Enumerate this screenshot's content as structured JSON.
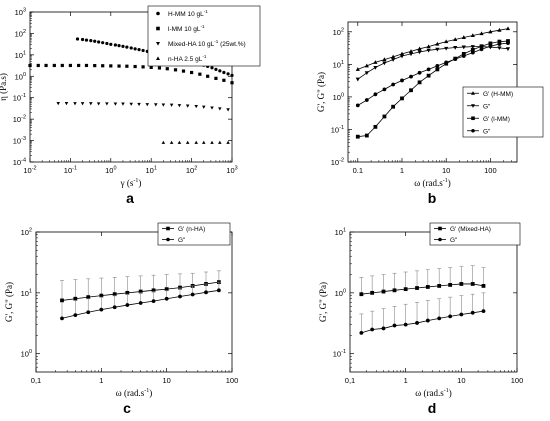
{
  "chart_data": [
    {
      "type": "scatter",
      "panel_label": "a",
      "xlabel": "γ (s",
      "xlabel_exp": "-1",
      "xlabel_close": ")",
      "ylabel": "η (Pa.s)",
      "x_scale": "log",
      "y_scale": "log",
      "xlim": [
        0.01,
        1000
      ],
      "ylim": [
        0.0001,
        1000
      ],
      "x_ticks": [
        {
          "b": "10",
          "e": "-2"
        },
        {
          "b": "10",
          "e": "-1"
        },
        {
          "b": "10",
          "e": "0"
        },
        {
          "b": "10",
          "e": "1"
        },
        {
          "b": "10",
          "e": "2"
        },
        {
          "b": "10",
          "e": "3"
        }
      ],
      "y_ticks": [
        {
          "b": "10",
          "e": "-4"
        },
        {
          "b": "10",
          "e": "-3"
        },
        {
          "b": "10",
          "e": "-2"
        },
        {
          "b": "10",
          "e": "-1"
        },
        {
          "b": "10",
          "e": "0"
        },
        {
          "b": "10",
          "e": "1"
        },
        {
          "b": "10",
          "e": "2"
        },
        {
          "b": "10",
          "e": "3"
        }
      ],
      "legend_position": "top-right, outside",
      "series": [
        {
          "name": "H-MM 10 gL",
          "unit_exp": "-1",
          "marker": "circle",
          "x": [
            0.15,
            0.2,
            0.25,
            0.32,
            0.4,
            0.5,
            0.63,
            0.8,
            1,
            1.3,
            1.6,
            2,
            2.5,
            3.2,
            4,
            5,
            6.3,
            8,
            10,
            13,
            16,
            20,
            25,
            32,
            40,
            50,
            63,
            80,
            100,
            130,
            160,
            200,
            250,
            320,
            400,
            500,
            630,
            800,
            1000
          ],
          "y": [
            55,
            52,
            49,
            46,
            43,
            40,
            37,
            34,
            31,
            29,
            27,
            25,
            23,
            21,
            19,
            17.5,
            16,
            14.5,
            13,
            12,
            11,
            10,
            9,
            8.2,
            7.5,
            6.8,
            6,
            5.4,
            4.8,
            4.3,
            3.8,
            3.3,
            2.9,
            2.5,
            2.1,
            1.8,
            1.5,
            1.3,
            1.1
          ]
        },
        {
          "name": "l-MM 10 gL",
          "unit_exp": "-1",
          "marker": "square",
          "x": [
            0.01,
            0.016,
            0.025,
            0.04,
            0.063,
            0.1,
            0.16,
            0.25,
            0.4,
            0.63,
            1,
            1.6,
            2.5,
            4,
            6.3,
            10,
            16,
            25,
            40,
            63,
            100,
            160,
            250,
            400,
            630,
            1000
          ],
          "y": [
            3.2,
            3.2,
            3.2,
            3.2,
            3.2,
            3.2,
            3.2,
            3.2,
            3.15,
            3.1,
            3.05,
            3,
            2.95,
            2.85,
            2.75,
            2.6,
            2.45,
            2.25,
            2,
            1.75,
            1.5,
            1.25,
            1,
            0.8,
            0.65,
            0.5
          ]
        },
        {
          "name": "Mixed-HA 10 gL",
          "unit_exp": "-1",
          "name_suffix": " (25wt.%)",
          "marker": "triangle-down",
          "x": [
            0.05,
            0.08,
            0.13,
            0.2,
            0.32,
            0.5,
            0.8,
            1.3,
            2,
            3.2,
            5,
            8,
            13,
            20,
            32,
            50,
            80,
            130,
            200,
            320,
            500,
            800
          ],
          "y": [
            0.055,
            0.055,
            0.054,
            0.054,
            0.054,
            0.053,
            0.053,
            0.052,
            0.052,
            0.051,
            0.05,
            0.049,
            0.048,
            0.047,
            0.046,
            0.044,
            0.042,
            0.04,
            0.037,
            0.034,
            0.031,
            0.028
          ]
        },
        {
          "name": "n-HA 2.5 gL",
          "unit_exp": "-1",
          "marker": "triangle-up",
          "x": [
            20,
            32,
            50,
            80,
            130,
            200,
            320,
            500,
            800
          ],
          "y": [
            0.0008,
            0.0008,
            0.0008,
            0.0008,
            0.0008,
            0.0008,
            0.0008,
            0.0008,
            0.0008
          ]
        }
      ]
    },
    {
      "type": "line",
      "panel_label": "b",
      "xlabel": "ω (rad.s",
      "xlabel_exp": "-1",
      "xlabel_close": ")",
      "ylabel": "G', G\" (Pa)",
      "x_scale": "log",
      "y_scale": "log",
      "xlim": [
        0.06,
        400
      ],
      "ylim": [
        0.01,
        200
      ],
      "x_ticks": [
        {
          "b": "0.1"
        },
        {
          "b": "1"
        },
        {
          "b": "10"
        },
        {
          "b": "100"
        }
      ],
      "y_ticks": [
        {
          "b": "10",
          "e": "-2"
        },
        {
          "b": "10",
          "e": "-1"
        },
        {
          "b": "10",
          "e": "0"
        },
        {
          "b": "10",
          "e": "1"
        },
        {
          "b": "10",
          "e": "2"
        }
      ],
      "legend_position": "right",
      "series": [
        {
          "name": "G' (H-MM)",
          "marker": "triangle-up",
          "x": [
            0.1,
            0.16,
            0.25,
            0.4,
            0.63,
            1,
            1.6,
            2.5,
            4,
            6.3,
            10,
            16,
            25,
            40,
            63,
            100,
            160,
            250
          ],
          "y": [
            7,
            9,
            11.5,
            14,
            17,
            21,
            25,
            30,
            35,
            42,
            50,
            58,
            67,
            77,
            88,
            100,
            112,
            125
          ]
        },
        {
          "name": "G\"",
          "marker": "triangle-down",
          "x": [
            0.1,
            0.16,
            0.25,
            0.4,
            0.63,
            1,
            1.6,
            2.5,
            4,
            6.3,
            10,
            16,
            25,
            40,
            63,
            100,
            160,
            250
          ],
          "y": [
            3.5,
            5.5,
            8,
            11,
            14,
            18,
            21,
            24,
            27,
            29,
            31,
            33,
            34,
            35,
            35,
            34,
            32,
            30
          ]
        },
        {
          "name": "G' (l-MM)",
          "marker": "square",
          "x": [
            0.1,
            0.16,
            0.25,
            0.4,
            0.63,
            1,
            1.6,
            2.5,
            4,
            6.3,
            10,
            16,
            25,
            40,
            63,
            100,
            160,
            250
          ],
          "y": [
            0.06,
            0.065,
            0.12,
            0.25,
            0.5,
            0.9,
            1.6,
            2.8,
            4.5,
            7,
            10.5,
            15,
            21,
            28,
            36,
            44,
            50,
            52
          ]
        },
        {
          "name": "G\"",
          "marker": "circle",
          "x": [
            0.1,
            0.16,
            0.25,
            0.4,
            0.63,
            1,
            1.6,
            2.5,
            4,
            6.3,
            10,
            16,
            25,
            40,
            63,
            100,
            160,
            250
          ],
          "y": [
            0.55,
            0.8,
            1.2,
            1.7,
            2.4,
            3.2,
            4.2,
            5.5,
            7,
            9,
            11.5,
            14.5,
            18,
            23,
            29,
            36,
            42,
            45
          ]
        }
      ]
    },
    {
      "type": "line",
      "panel_label": "c",
      "xlabel": "ω (rad.s",
      "xlabel_exp": "-1",
      "xlabel_close": ")",
      "ylabel": "G', G\" (Pa)",
      "x_scale": "log",
      "y_scale": "log",
      "xlim": [
        0.1,
        100
      ],
      "ylim": [
        0.5,
        100
      ],
      "x_ticks": [
        {
          "b": "0,1"
        },
        {
          "b": "1"
        },
        {
          "b": "10"
        },
        {
          "b": "100"
        }
      ],
      "y_ticks": [
        {
          "b": "10",
          "e": "0"
        },
        {
          "b": "10",
          "e": "1"
        },
        {
          "b": "10",
          "e": "2"
        }
      ],
      "legend_position": "top-right",
      "series": [
        {
          "name": "G' (n-HA)",
          "marker": "square",
          "error_bars": true,
          "x": [
            0.25,
            0.4,
            0.63,
            1,
            1.6,
            2.5,
            4,
            6.3,
            10,
            16,
            25,
            40,
            63
          ],
          "y": [
            7.5,
            8,
            8.5,
            9,
            9.5,
            10,
            10.5,
            11,
            11.5,
            12.2,
            13,
            14,
            15
          ],
          "error_upper": [
            16,
            16.5,
            17,
            17.5,
            18,
            18.5,
            19,
            19.5,
            20,
            20.5,
            21,
            22,
            23
          ]
        },
        {
          "name": "G\"",
          "marker": "circle",
          "error_bars": true,
          "x": [
            0.25,
            0.4,
            0.63,
            1,
            1.6,
            2.5,
            4,
            6.3,
            10,
            16,
            25,
            40,
            63
          ],
          "y": [
            3.8,
            4.3,
            4.8,
            5.3,
            5.8,
            6.3,
            6.8,
            7.3,
            8,
            8.7,
            9.4,
            10.2,
            11
          ],
          "error_upper": [
            7,
            7.5,
            8,
            8.5,
            9,
            9.5,
            10,
            10.5,
            11,
            12,
            13,
            14,
            15
          ]
        }
      ]
    },
    {
      "type": "line",
      "panel_label": "d",
      "xlabel": "ω (rad.s",
      "xlabel_exp": "-1",
      "xlabel_close": ")",
      "ylabel": "G', G\" (Pa)",
      "x_scale": "log",
      "y_scale": "log",
      "xlim": [
        0.1,
        100
      ],
      "ylim": [
        0.05,
        10
      ],
      "x_ticks": [
        {
          "b": "0,1"
        },
        {
          "b": "1"
        },
        {
          "b": "10"
        },
        {
          "b": "100"
        }
      ],
      "y_ticks": [
        {
          "b": "10",
          "e": "-1"
        },
        {
          "b": "10",
          "e": "0"
        },
        {
          "b": "10",
          "e": "1"
        }
      ],
      "legend_position": "top-right",
      "series": [
        {
          "name": "G' (Mixed-HA)",
          "marker": "square",
          "error_bars": true,
          "x": [
            0.16,
            0.25,
            0.4,
            0.63,
            1,
            1.6,
            2.5,
            4,
            6.3,
            10,
            16,
            25
          ],
          "y": [
            0.95,
            1,
            1.05,
            1.1,
            1.15,
            1.2,
            1.25,
            1.3,
            1.35,
            1.4,
            1.4,
            1.3
          ],
          "error_upper": [
            1.8,
            1.9,
            2,
            2.1,
            2.2,
            2.3,
            2.4,
            2.5,
            2.6,
            2.7,
            2.8,
            2.6
          ]
        },
        {
          "name": "G\"",
          "marker": "circle",
          "error_bars": true,
          "x": [
            0.16,
            0.25,
            0.4,
            0.63,
            1,
            1.6,
            2.5,
            4,
            6.3,
            10,
            16,
            25
          ],
          "y": [
            0.22,
            0.25,
            0.26,
            0.29,
            0.3,
            0.32,
            0.35,
            0.38,
            0.41,
            0.44,
            0.47,
            0.5
          ],
          "error_upper": [
            0.45,
            0.5,
            0.55,
            0.6,
            0.65,
            0.7,
            0.75,
            0.8,
            0.85,
            0.9,
            0.95,
            1
          ]
        }
      ]
    }
  ]
}
